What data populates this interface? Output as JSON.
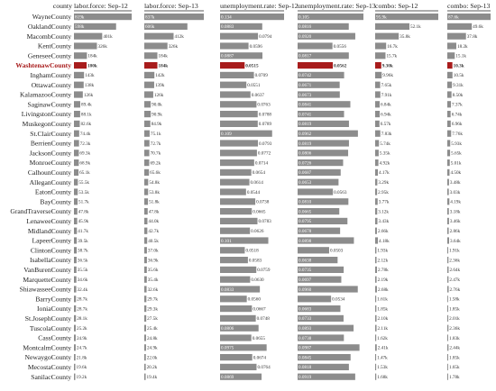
{
  "chart_data": {
    "type": "bar",
    "counties": [
      "WayneCounty",
      "OaklandCounty",
      "MacombCounty",
      "KentCounty",
      "GeneseeCounty",
      "WashtenawCounty",
      "InghamCounty",
      "OttawaCounty",
      "KalamazooCounty",
      "SaginawCounty",
      "LivingstonCounty",
      "MuskegonCounty",
      "St.ClairCounty",
      "BerrienCounty",
      "JacksonCounty",
      "MonroeCounty",
      "CalhounCounty",
      "AlleganCounty",
      "EatonCounty",
      "BayCounty",
      "GrandTraverseCounty",
      "LenaweeCounty",
      "MidlandCounty",
      "LapeerCounty",
      "ClintonCounty",
      "IsabellaCounty",
      "VanBurenCounty",
      "MarquetteCounty",
      "ShiawasseeCounty",
      "BarryCounty",
      "IoniaCounty",
      "St.JosephCounty",
      "TuscolaCounty",
      "CassCounty",
      "MontcalmCounty",
      "NewaygoCounty",
      "MecostaCounty",
      "SanilacCounty"
    ],
    "header_label": "county",
    "highlight": "WashtenawCounty",
    "colors": {
      "bar": "#8c8c8c",
      "highlight": "#a81c1c"
    },
    "series": [
      {
        "name": "labor.force: Sep-12",
        "max": 819,
        "labels": [
          "819k",
          "598k",
          "401k",
          "326k",
          "184k",
          "180k",
          "143k",
          "138k",
          "126k",
          "89.4k",
          "88.1k",
          "82.6k",
          "74.4k",
          "72.3k",
          "69.3k",
          "68.9k",
          "65.1k",
          "55.5k",
          "53.5k",
          "51.7k",
          "47.8k",
          "45.9k",
          "41.7k",
          "39.5k",
          "38.7k",
          "36.5k",
          "35.5k",
          "34.6k",
          "32.4k",
          "28.7k",
          "28.7k",
          "28.1k",
          "25.2k",
          "24.9k",
          "24.7k",
          "21.8k",
          "19.6k",
          "19.2k"
        ],
        "values": [
          819,
          598,
          401,
          326,
          184,
          180,
          143,
          138,
          126,
          89.4,
          88.1,
          82.6,
          74.4,
          72.3,
          69.3,
          68.9,
          65.1,
          55.5,
          53.5,
          51.7,
          47.8,
          45.9,
          41.7,
          39.5,
          38.7,
          36.5,
          35.5,
          34.6,
          32.4,
          28.7,
          28.7,
          28.1,
          25.2,
          24.9,
          24.7,
          21.8,
          19.6,
          19.2
        ]
      },
      {
        "name": "labor.force: Sep-13",
        "max": 837,
        "labels": [
          "837k",
          "606k",
          "412k",
          "326k",
          "184k",
          "184k",
          "142k",
          "139k",
          "126k",
          "90.0k",
          "90.9k",
          "84.9k",
          "75.1k",
          "72.7k",
          "70.7k",
          "69.2k",
          "65.6k",
          "54.8k",
          "53.8k",
          "51.8k",
          "47.8k",
          "44.0k",
          "42.7k",
          "40.5k",
          "37.0k",
          "36.9k",
          "35.6k",
          "35.4k",
          "32.6k",
          "29.7k",
          "29.3k",
          "27.5k",
          "25.4k",
          "24.8k",
          "24.9k",
          "22.0k",
          "20.2k",
          "19.4k"
        ],
        "values": [
          837,
          606,
          412,
          326,
          184,
          184,
          142,
          139,
          126,
          90.0,
          90.9,
          84.9,
          75.1,
          72.7,
          70.7,
          69.2,
          65.6,
          54.8,
          53.8,
          51.8,
          47.8,
          44.0,
          42.7,
          40.5,
          37.0,
          36.9,
          35.6,
          35.4,
          32.6,
          29.7,
          29.3,
          27.5,
          25.4,
          24.8,
          24.9,
          22.0,
          20.2,
          19.4
        ]
      },
      {
        "name": "unemployment.rate: Sep-12",
        "max": 0.134,
        "labels": [
          "0.134",
          "0.0883",
          "0.0794",
          "0.0596",
          "0.0887",
          "0.0515",
          "0.0709",
          "0.0551",
          "0.0637",
          "0.0763",
          "0.0788",
          "0.0789",
          "0.109",
          "0.0793",
          "0.0772",
          "0.0714",
          "0.0654",
          "0.0614",
          "0.0544",
          "0.0738",
          "0.0665",
          "0.0783",
          "0.0626",
          "0.101",
          "0.0518",
          "0.0583",
          "0.0759",
          "0.0630",
          "0.0833",
          "0.0560",
          "0.0667",
          "0.0748",
          "0.0806",
          "0.0655",
          "0.0975",
          "0.0674",
          "0.0764",
          "0.0869"
        ],
        "values": [
          0.134,
          0.0883,
          0.0794,
          0.0596,
          0.0887,
          0.0515,
          0.0709,
          0.0551,
          0.0637,
          0.0763,
          0.0788,
          0.0789,
          0.109,
          0.0793,
          0.0772,
          0.0714,
          0.0654,
          0.0614,
          0.0544,
          0.0738,
          0.0665,
          0.0783,
          0.0626,
          0.101,
          0.0518,
          0.0583,
          0.0759,
          0.063,
          0.0833,
          0.056,
          0.0667,
          0.0748,
          0.0806,
          0.0655,
          0.0975,
          0.0674,
          0.0764,
          0.0869
        ]
      },
      {
        "name": "unemployment.rate: Sep-13",
        "max": 0.105,
        "labels": [
          "0.105",
          "0.0816",
          "0.0920",
          "0.0556",
          "0.0817",
          "0.0562",
          "0.0742",
          "0.0671",
          "0.0673",
          "0.0841",
          "0.0741",
          "0.0819",
          "0.0962",
          "0.0819",
          "0.0806",
          "0.0726",
          "0.0687",
          "0.0653",
          "0.0563",
          "0.0810",
          "0.0665",
          "0.0795",
          "0.0678",
          "0.0898",
          "0.0503",
          "0.0638",
          "0.0735",
          "0.0697",
          "0.0960",
          "0.0534",
          "0.0683",
          "0.0733",
          "0.0893",
          "0.0738",
          "0.0987",
          "0.0845",
          "0.0818",
          "0.0919"
        ],
        "values": [
          0.105,
          0.0816,
          0.092,
          0.0556,
          0.0817,
          0.0562,
          0.0742,
          0.0671,
          0.0673,
          0.0841,
          0.0741,
          0.0819,
          0.0962,
          0.0819,
          0.0806,
          0.0726,
          0.0687,
          0.0653,
          0.0563,
          0.081,
          0.0665,
          0.0795,
          0.0678,
          0.0898,
          0.0503,
          0.0638,
          0.0735,
          0.0697,
          0.096,
          0.0534,
          0.0683,
          0.0733,
          0.0893,
          0.0738,
          0.0987,
          0.0845,
          0.0818,
          0.0919
        ]
      },
      {
        "name": "combo: Sep-12",
        "max": 95.9,
        "labels": [
          "95.9k",
          "52.1k",
          "35.8k",
          "16.7k",
          "15.7k",
          "9.30k",
          "9.96k",
          "7.65k",
          "7.91k",
          "6.84k",
          "6.94k",
          "6.57k",
          "7.83k",
          "5.74k",
          "5.35k",
          "4.92k",
          "4.17k",
          "3.29k",
          "2.95k",
          "3.77k",
          "3.12k",
          "3.43k",
          "2.66k",
          "4.18k",
          "1.93k",
          "2.12k",
          "2.78k",
          "2.19k",
          "2.68k",
          "1.61k",
          "1.85k",
          "2.10k",
          "2.11k",
          "1.62k",
          "2.41k",
          "1.47k",
          "1.53k",
          "1.68k"
        ],
        "values": [
          95.9,
          52.1,
          35.8,
          16.7,
          15.7,
          9.3,
          9.96,
          7.65,
          7.91,
          6.84,
          6.94,
          6.57,
          7.83,
          5.74,
          5.35,
          4.92,
          4.17,
          3.29,
          2.95,
          3.77,
          3.12,
          3.43,
          2.66,
          4.18,
          1.93,
          2.12,
          2.78,
          2.19,
          2.68,
          1.61,
          1.85,
          2.1,
          2.11,
          1.62,
          2.41,
          1.47,
          1.53,
          1.68
        ]
      },
      {
        "name": "combo: Sep-13",
        "max": 87.6,
        "labels": [
          "87.6k",
          "49.6k",
          "37.8k",
          "18.2k",
          "15.1k",
          "10.3k",
          "10.5k",
          "9.31k",
          "8.50k",
          "7.37k",
          "6.74k",
          "6.96k",
          "7.76k",
          "5.93k",
          "5.65k",
          "5.01k",
          "4.50k",
          "3.48k",
          "3.03k",
          "4.19k",
          "3.18k",
          "3.46k",
          "2.86k",
          "3.64k",
          "1.91k",
          "2.36k",
          "2.64k",
          "2.47k",
          "2.76k",
          "1.58k",
          "1.85k",
          "2.01k",
          "2.36k",
          "1.83k",
          "2.44k",
          "1.85k",
          "1.65k",
          "1.78k"
        ],
        "values": [
          87.6,
          49.6,
          37.8,
          18.2,
          15.1,
          10.3,
          10.5,
          9.31,
          8.5,
          7.37,
          6.74,
          6.96,
          7.76,
          5.93,
          5.65,
          5.01,
          4.5,
          3.48,
          3.03,
          4.19,
          3.18,
          3.46,
          2.86,
          3.64,
          1.91,
          2.36,
          2.64,
          2.47,
          2.76,
          1.58,
          1.85,
          2.01,
          2.36,
          1.83,
          2.44,
          1.85,
          1.65,
          1.78
        ]
      }
    ]
  }
}
